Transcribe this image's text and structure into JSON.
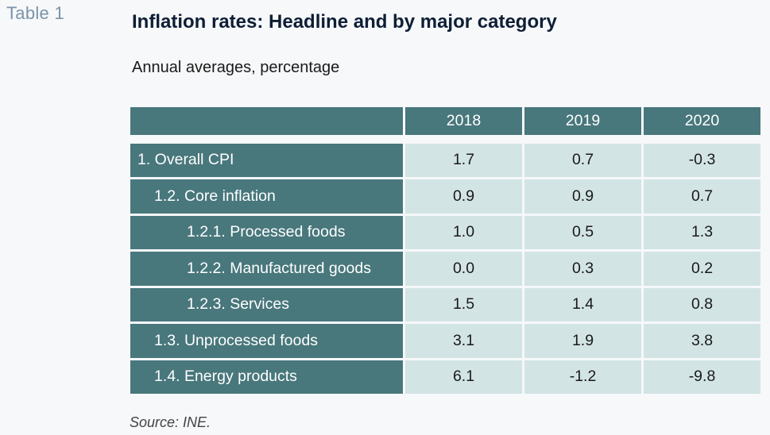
{
  "table_label": "Table 1",
  "title": "Inflation rates: Headline and by major category",
  "subtitle": "Annual averages, percentage",
  "table": {
    "header": {
      "label": "",
      "years": [
        "2018",
        "2019",
        "2020"
      ]
    },
    "rows": [
      {
        "label": "1. Overall CPI",
        "level": 0,
        "values": [
          "1.7",
          "0.7",
          "-0.3"
        ]
      },
      {
        "label": "1.2. Core inflation",
        "level": 1,
        "values": [
          "0.9",
          "0.9",
          "0.7"
        ]
      },
      {
        "label": "1.2.1. Processed foods",
        "level": 2,
        "values": [
          "1.0",
          "0.5",
          "1.3"
        ]
      },
      {
        "label": "1.2.2. Manufactured goods",
        "level": 2,
        "values": [
          "0.0",
          "0.3",
          "0.2"
        ]
      },
      {
        "label": "1.2.3. Services",
        "level": 2,
        "values": [
          "1.5",
          "1.4",
          "0.8"
        ]
      },
      {
        "label": "1.3. Unprocessed foods",
        "level": 1,
        "values": [
          "3.1",
          "1.9",
          "3.8"
        ]
      },
      {
        "label": "1.4. Energy products",
        "level": 1,
        "values": [
          "6.1",
          "-1.2",
          "-9.8"
        ]
      }
    ]
  },
  "source": "Source: INE.",
  "colors": {
    "header_bg": "#48777c",
    "value_bg": "#d3e4e5",
    "title": "#0e1e35",
    "table_label": "#7b93a8"
  }
}
